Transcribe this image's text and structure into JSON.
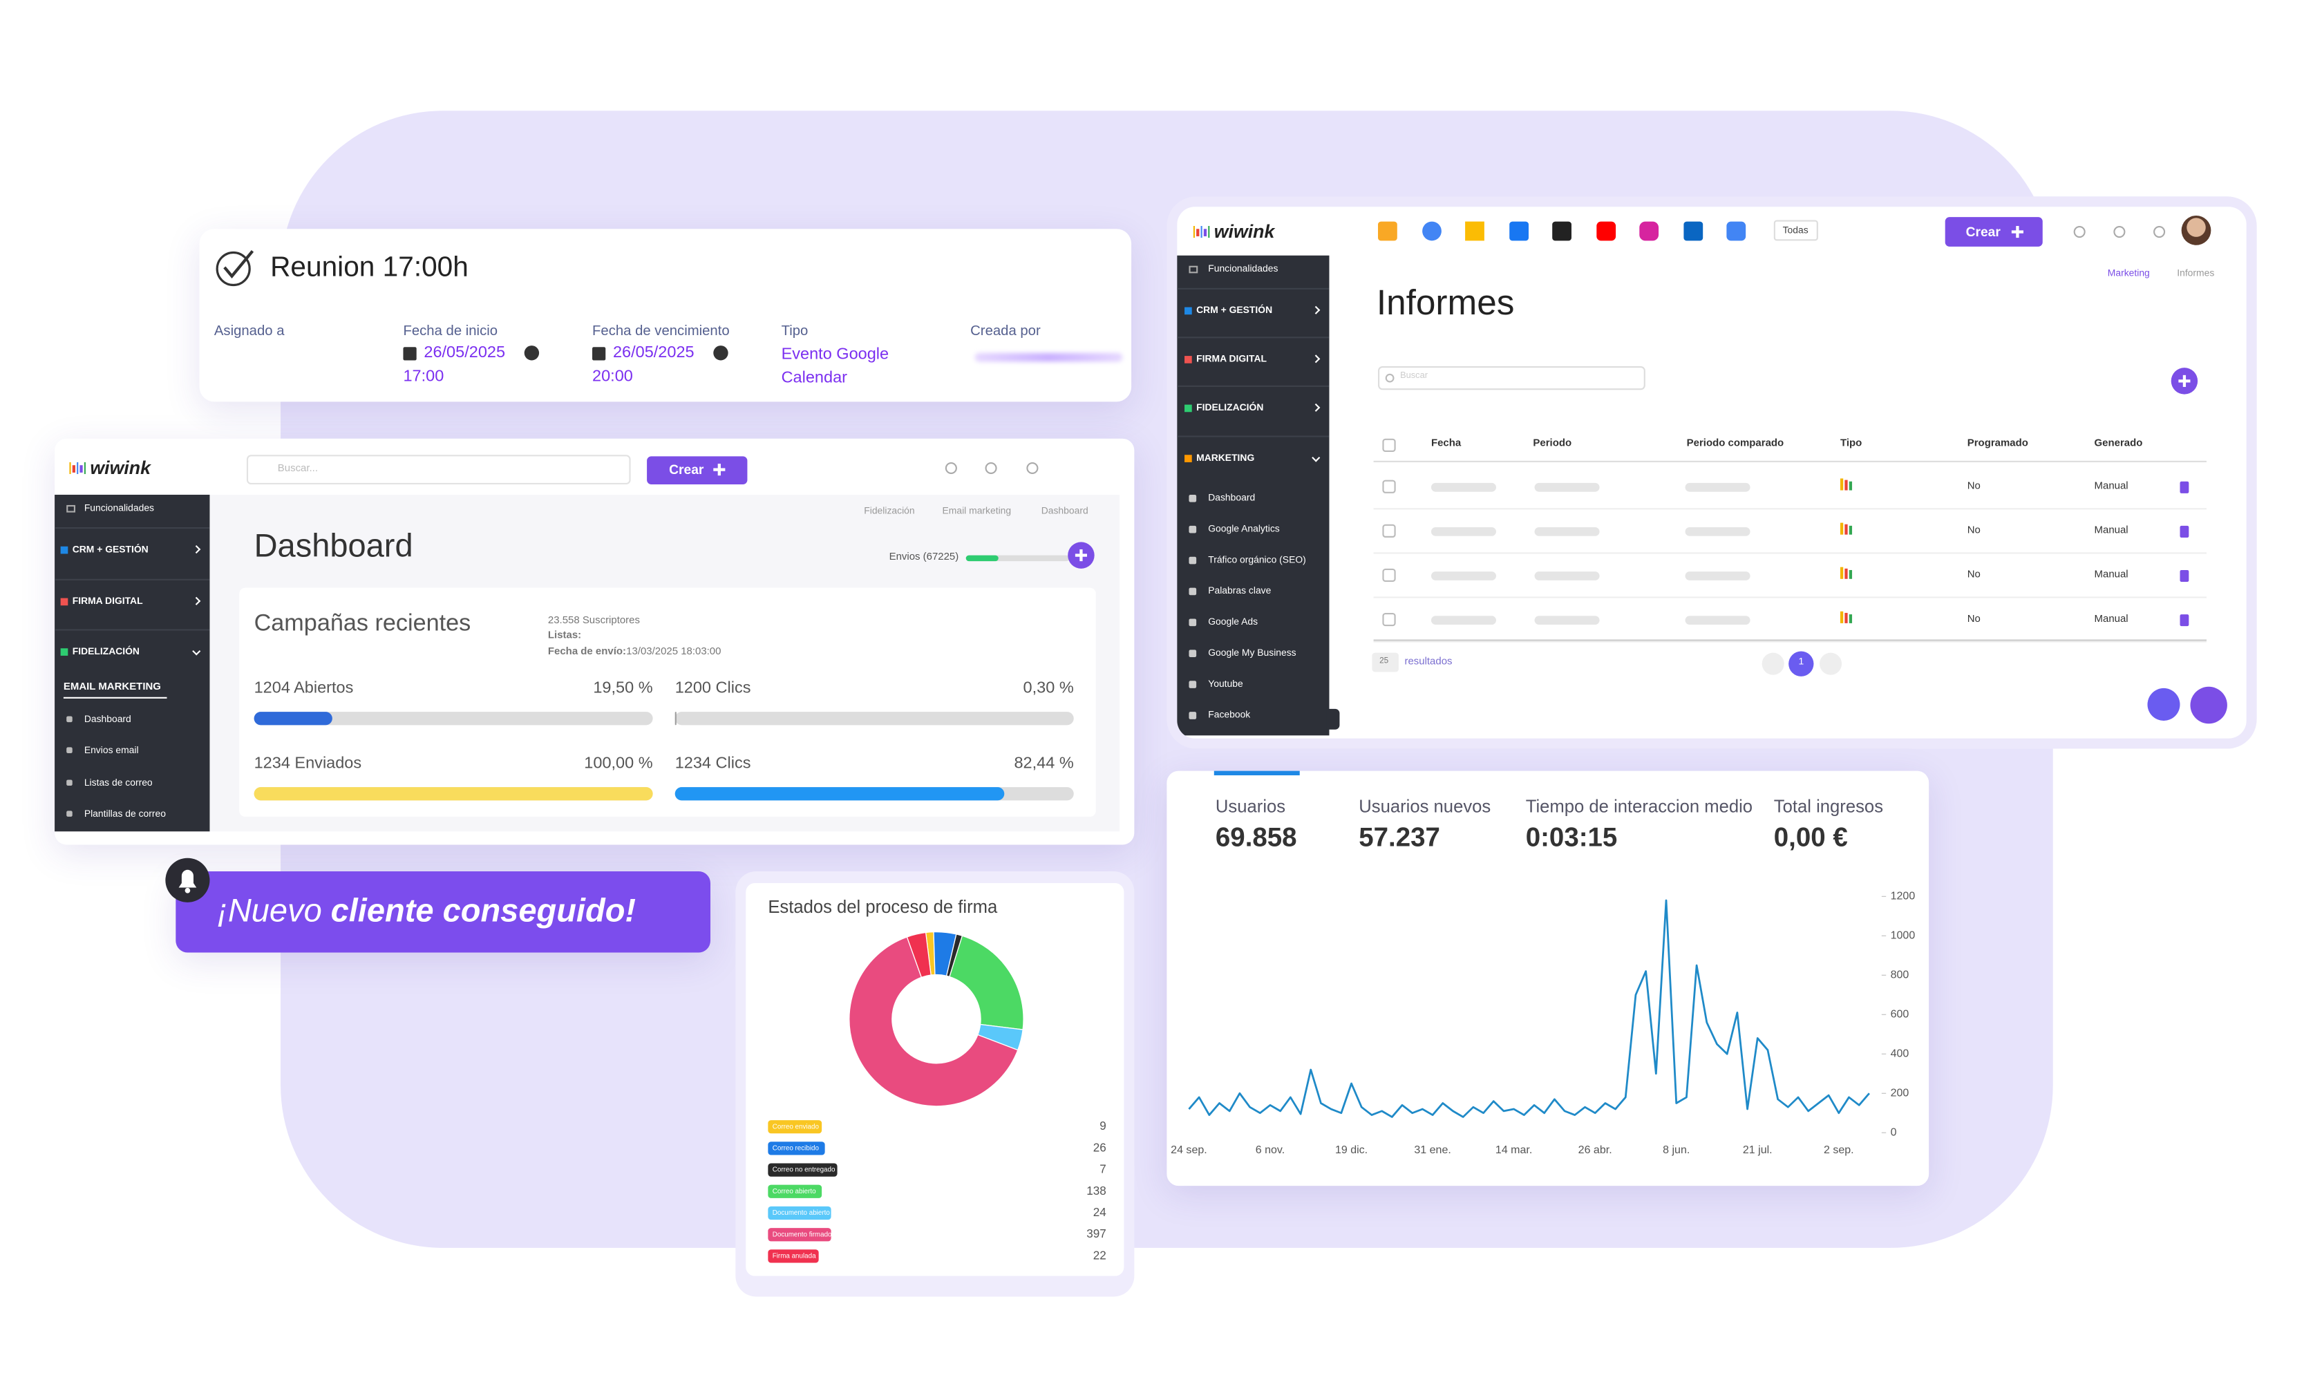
{
  "task": {
    "title": "Reunion 17:00h",
    "assigned_label": "Asignado a",
    "start": {
      "label": "Fecha de inicio",
      "date": "26/05/2025",
      "time": "17:00"
    },
    "due": {
      "label": "Fecha de vencimiento",
      "date": "26/05/2025",
      "time": "20:00"
    },
    "type": {
      "label": "Tipo",
      "value": "Evento Google Calendar"
    },
    "created_by_label": "Creada por"
  },
  "dashboard": {
    "logo": "wiwink",
    "search": "Buscar...",
    "create": "Crear",
    "breadcrumb": [
      "Fidelización",
      "Email marketing",
      "Dashboard"
    ],
    "title": "Dashboard",
    "sends": "Envios (67225)",
    "sidebar": {
      "top": "Funcionalidades",
      "sections": [
        "CRM + GESTIÓN",
        "FIRMA DIGITAL",
        "FIDELIZACIÓN"
      ],
      "subheader": "EMAIL MARKETING",
      "items": [
        "Dashboard",
        "Envios email",
        "Listas de correo",
        "Plantillas de correo"
      ]
    },
    "campaigns": {
      "title": "Campañas recientes",
      "subscribers": "23.558 Suscriptores",
      "lists": "Listas:",
      "send_date_label": "Fecha de envío:",
      "send_date": "13/03/2025 18:03:00",
      "max": 100,
      "stats": [
        {
          "label": "1204 Abiertos",
          "value": 19.5,
          "value_label": "19,50 %",
          "color": "#2f6ad9"
        },
        {
          "label": "1200 Clics",
          "value": 0.3,
          "value_label": "0,30 %",
          "color": "#9e9e9e"
        },
        {
          "label": "1234 Enviados",
          "value": 100,
          "value_label": "100,00 %",
          "color": "#f9dc5c"
        },
        {
          "label": "1234 Clics",
          "value": 82.44,
          "value_label": "82,44 %",
          "color": "#2196f3"
        }
      ]
    }
  },
  "notification": {
    "prefix": "¡Nuevo",
    "emphasis": "cliente conseguido!"
  },
  "informes": {
    "logo": "wiwink",
    "filter": "Todas",
    "create": "Crear",
    "breadcrumb": [
      "Marketing",
      "Informes"
    ],
    "title": "Informes",
    "search": "Buscar",
    "sidebar": {
      "top": "Funcionalidades",
      "sections": [
        "CRM + GESTIÓN",
        "FIRMA DIGITAL",
        "FIDELIZACIÓN",
        "MARKETING"
      ],
      "items": [
        "Dashboard",
        "Google Analytics",
        "Tráfico orgánico (SEO)",
        "Palabras clave",
        "Google Ads",
        "Google My Business",
        "Youtube",
        "Facebook"
      ]
    },
    "table": {
      "headers": [
        "Fecha",
        "Periodo",
        "Periodo comparado",
        "Tipo",
        "Programado",
        "Generado"
      ],
      "rows": [
        [
          "No",
          "Manual"
        ],
        [
          "No",
          "Manual"
        ],
        [
          "No",
          "Manual"
        ],
        [
          "No",
          "Manual"
        ]
      ]
    },
    "page_size": 25,
    "results": "resultados",
    "page": 1
  },
  "analytics": {
    "metrics": [
      {
        "label": "Usuarios",
        "value": "69.858"
      },
      {
        "label": "Usuarios nuevos",
        "value": "57.237"
      },
      {
        "label": "Tiempo de interaccion medio",
        "value": "0:03:15"
      },
      {
        "label": "Total ingresos",
        "value": "0,00 €"
      }
    ]
  },
  "chart_data": [
    {
      "type": "donut",
      "title": "Estados del proceso de firma",
      "categories": [
        "Correo enviado",
        "Correo recibido",
        "Correo no entregado",
        "Correo abierto",
        "Documento abierto",
        "Documento firmado",
        "Firma anulada"
      ],
      "values": [
        9,
        26,
        7,
        138,
        24,
        397,
        22
      ],
      "colors": [
        "#f9c623",
        "#1e7be6",
        "#2a2a2a",
        "#4cd964",
        "#5ac8fa",
        "#e94b7f",
        "#f0314f"
      ]
    },
    {
      "type": "line",
      "color": "#1f8ac8",
      "categories": [
        "24 sep.",
        null,
        null,
        null,
        null,
        null,
        null,
        null,
        "6 nov.",
        null,
        null,
        null,
        null,
        null,
        null,
        null,
        "19 dic.",
        null,
        null,
        null,
        null,
        null,
        null,
        null,
        "31 ene.",
        null,
        null,
        null,
        null,
        null,
        null,
        null,
        "14 mar.",
        null,
        null,
        null,
        null,
        null,
        null,
        null,
        "26 abr.",
        null,
        null,
        null,
        null,
        null,
        null,
        null,
        "8 jun.",
        null,
        null,
        null,
        null,
        null,
        null,
        null,
        "21 jul.",
        null,
        null,
        null,
        null,
        null,
        null,
        null,
        "2 sep.",
        null,
        null,
        null
      ],
      "values": [
        120,
        180,
        90,
        150,
        110,
        200,
        130,
        100,
        140,
        110,
        180,
        95,
        320,
        150,
        120,
        100,
        250,
        130,
        90,
        110,
        80,
        140,
        100,
        120,
        90,
        150,
        110,
        80,
        130,
        100,
        160,
        110,
        120,
        90,
        140,
        100,
        170,
        110,
        90,
        130,
        100,
        150,
        120,
        180,
        700,
        820,
        300,
        1180,
        150,
        180,
        850,
        560,
        450,
        400,
        610,
        120,
        480,
        420,
        170,
        130,
        180,
        110,
        150,
        190,
        100,
        180,
        140,
        200
      ],
      "ylim": [
        0,
        1200
      ],
      "yticks": [
        0,
        200,
        400,
        600,
        800,
        1000,
        1200
      ]
    }
  ]
}
